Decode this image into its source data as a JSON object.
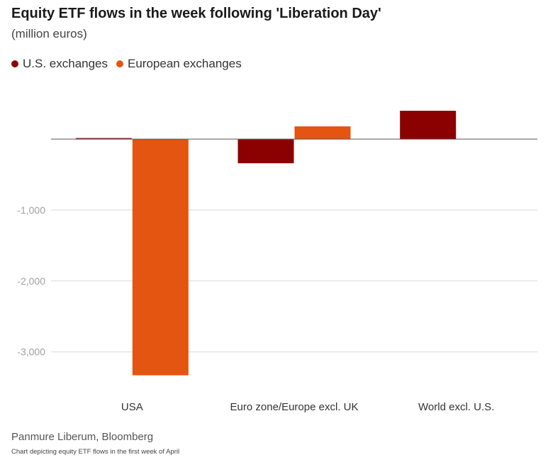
{
  "chart_data": {
    "type": "bar",
    "title": "Equity ETF flows in the week following 'Liberation Day'",
    "subtitle": "(million euros)",
    "categories": [
      "USA",
      "Euro zone/Europe excl. UK",
      "World excl. U.S."
    ],
    "series": [
      {
        "name": "U.S. exchanges",
        "color": "#8b0000",
        "values": [
          15,
          -340,
          400
        ]
      },
      {
        "name": "European exchanges",
        "color": "#e35510",
        "values": [
          -3330,
          180,
          null
        ]
      }
    ],
    "y_ticks": [
      {
        "value": -1000,
        "label": "-1,000"
      },
      {
        "value": -2000,
        "label": "-2,000"
      },
      {
        "value": -3000,
        "label": "-3,000"
      }
    ],
    "ylim": [
      -3600,
      700
    ],
    "xlabel": "",
    "ylabel": "",
    "grid": true,
    "legend_position": "top-left"
  },
  "footer": {
    "source": "Panmure Liberum, Bloomberg",
    "caption": "Chart depicting equity ETF flows in the first week of April"
  }
}
